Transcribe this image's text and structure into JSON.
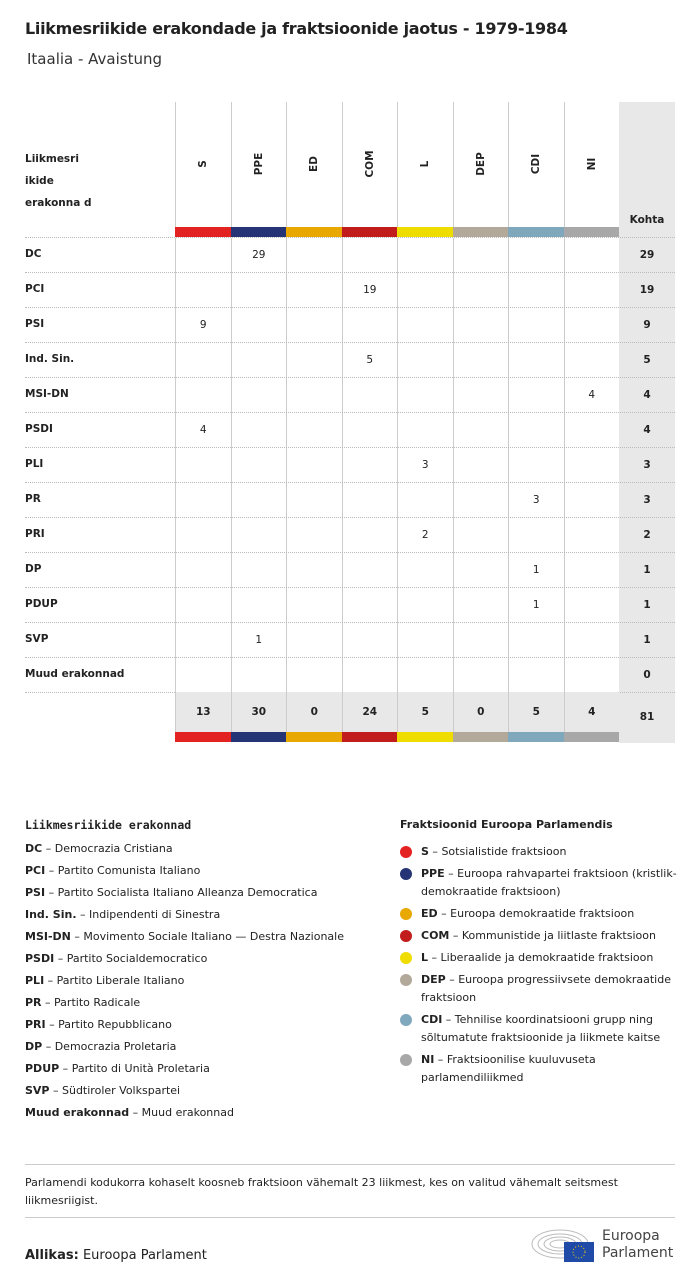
{
  "title": "Liikmesriikide erakondade ja fraktsioonide jaotus - 1979-1984",
  "subtitle": "Itaalia - Avaistung",
  "chart_data": {
    "type": "table",
    "row_header": "Liikmesri ikide erakonna d",
    "total_header": "Kohta",
    "groups": [
      {
        "code": "S",
        "color": "#e32322"
      },
      {
        "code": "PPE",
        "color": "#253475"
      },
      {
        "code": "ED",
        "color": "#e8a800"
      },
      {
        "code": "COM",
        "color": "#c11d1d"
      },
      {
        "code": "L",
        "color": "#f0dd00"
      },
      {
        "code": "DEP",
        "color": "#b3a99b"
      },
      {
        "code": "CDI",
        "color": "#7fa8bd"
      },
      {
        "code": "NI",
        "color": "#a8a8a8"
      }
    ],
    "rows": [
      {
        "party": "DC",
        "values": [
          null,
          29,
          null,
          null,
          null,
          null,
          null,
          null
        ],
        "total": 29
      },
      {
        "party": "PCI",
        "values": [
          null,
          null,
          null,
          19,
          null,
          null,
          null,
          null
        ],
        "total": 19
      },
      {
        "party": "PSI",
        "values": [
          9,
          null,
          null,
          null,
          null,
          null,
          null,
          null
        ],
        "total": 9
      },
      {
        "party": "Ind. Sin.",
        "values": [
          null,
          null,
          null,
          5,
          null,
          null,
          null,
          null
        ],
        "total": 5
      },
      {
        "party": "MSI-DN",
        "values": [
          null,
          null,
          null,
          null,
          null,
          null,
          null,
          4
        ],
        "total": 4
      },
      {
        "party": "PSDI",
        "values": [
          4,
          null,
          null,
          null,
          null,
          null,
          null,
          null
        ],
        "total": 4
      },
      {
        "party": "PLI",
        "values": [
          null,
          null,
          null,
          null,
          3,
          null,
          null,
          null
        ],
        "total": 3
      },
      {
        "party": "PR",
        "values": [
          null,
          null,
          null,
          null,
          null,
          null,
          3,
          null
        ],
        "total": 3
      },
      {
        "party": "PRI",
        "values": [
          null,
          null,
          null,
          null,
          2,
          null,
          null,
          null
        ],
        "total": 2
      },
      {
        "party": "DP",
        "values": [
          null,
          null,
          null,
          null,
          null,
          null,
          1,
          null
        ],
        "total": 1
      },
      {
        "party": "PDUP",
        "values": [
          null,
          null,
          null,
          null,
          null,
          null,
          1,
          null
        ],
        "total": 1
      },
      {
        "party": "SVP",
        "values": [
          null,
          1,
          null,
          null,
          null,
          null,
          null,
          null
        ],
        "total": 1
      },
      {
        "party": "Muud erakonnad",
        "values": [
          null,
          null,
          null,
          null,
          null,
          null,
          null,
          null
        ],
        "total": 0
      }
    ],
    "column_totals": [
      13,
      30,
      0,
      24,
      5,
      0,
      5,
      4
    ],
    "grand_total": 81
  },
  "legend_parties": {
    "title": "Liikmesriikide erakonnad",
    "items": [
      {
        "code": "DC",
        "name": "Democrazia Cristiana"
      },
      {
        "code": "PCI",
        "name": "Partito Comunista Italiano"
      },
      {
        "code": "PSI",
        "name": "Partito Socialista Italiano Alleanza Democratica"
      },
      {
        "code": "Ind. Sin.",
        "name": "Indipendenti di Sinestra"
      },
      {
        "code": "MSI-DN",
        "name": "Movimento Sociale Italiano — Destra Nazionale"
      },
      {
        "code": "PSDI",
        "name": "Partito Socialdemocratico"
      },
      {
        "code": "PLI",
        "name": "Partito Liberale Italiano"
      },
      {
        "code": "PR",
        "name": "Partito Radicale"
      },
      {
        "code": "PRI",
        "name": "Partito Repubblicano"
      },
      {
        "code": "DP",
        "name": "Democrazia Proletaria"
      },
      {
        "code": "PDUP",
        "name": "Partito di Unità Proletaria"
      },
      {
        "code": "SVP",
        "name": "Südtiroler Volkspartei"
      },
      {
        "code": "Muud erakonnad",
        "name": "Muud erakonnad"
      }
    ]
  },
  "legend_groups": {
    "title": "Fraktsioonid Euroopa Parlamendis",
    "items": [
      {
        "code": "S",
        "name": "Sotsialistide fraktsioon"
      },
      {
        "code": "PPE",
        "name": "Euroopa rahvapartei fraktsioon (kristlik-demokraatide fraktsioon)"
      },
      {
        "code": "ED",
        "name": "Euroopa demokraatide fraktsioon"
      },
      {
        "code": "COM",
        "name": "Kommunistide ja liitlaste fraktsioon"
      },
      {
        "code": "L",
        "name": "Liberaalide ja demokraatide fraktsioon"
      },
      {
        "code": "DEP",
        "name": "Euroopa progressiivsete demokraatide fraktsioon"
      },
      {
        "code": "CDI",
        "name": "Tehnilise koordinatsiooni grupp ning sõltumatute fraktsioonide ja liikmete kaitse"
      },
      {
        "code": "NI",
        "name": "Fraktsioonilise kuuluvuseta parlamendiliikmed"
      }
    ]
  },
  "note": "Parlamendi kodukorra kohaselt koosneb fraktsioon vähemalt 23 liikmest, kes on valitud vähemalt seitsmest liikmesriigist.",
  "source": {
    "label": "Allikas:",
    "value": "Euroopa Parlament"
  },
  "logo": {
    "line1": "Euroopa",
    "line2": "Parlament"
  }
}
